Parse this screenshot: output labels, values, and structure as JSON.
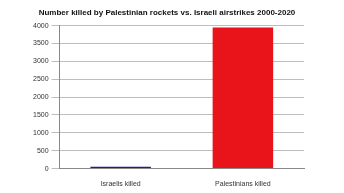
{
  "chart_data": {
    "type": "bar",
    "title": "Number killed by Palestinian rockets vs. Israeli airstrikes 2000-2020",
    "categories": [
      "Israelis killed",
      "Palestinians killed"
    ],
    "values": [
      50,
      3950
    ],
    "colors": [
      "#1a1aa6",
      "#e8141a"
    ],
    "ylim": [
      0,
      4000
    ],
    "yticks": [
      0,
      500,
      1000,
      1500,
      2000,
      2500,
      3000,
      3500,
      4000
    ],
    "grid": true
  }
}
